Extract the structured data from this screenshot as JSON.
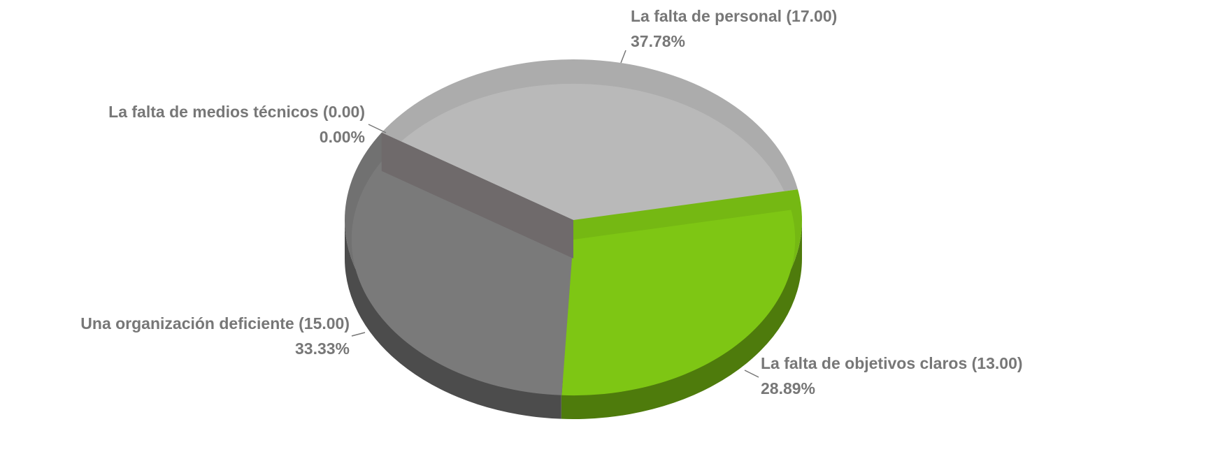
{
  "chart_data": {
    "type": "pie3d",
    "categories": [
      "La falta de personal (17.00)",
      "La falta de objetivos claros (13.00)",
      "Una organización deficiente (15.00)",
      "La falta de medios técnicos (0.00)"
    ],
    "values": [
      37.78,
      28.89,
      33.33,
      0
    ],
    "value_labels": [
      "37.78%",
      "28.89%",
      "33.33%",
      "0.00%"
    ],
    "colors": [
      "#b9b9b9",
      "#7ec614",
      "#7a7a7a",
      "#6f6a6b"
    ]
  }
}
